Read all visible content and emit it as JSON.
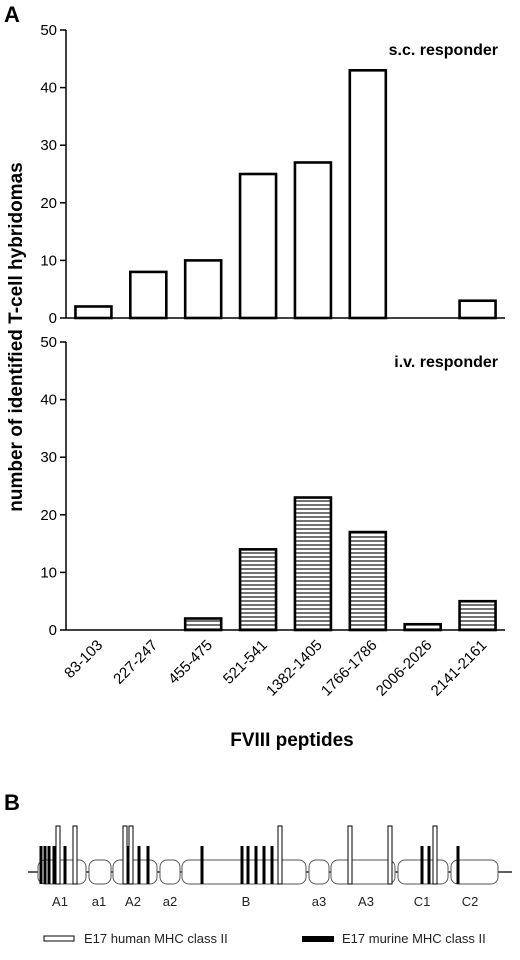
{
  "panel_a_label": "A",
  "panel_b_label": "B",
  "chart_data": [
    {
      "type": "bar",
      "title": "s.c. responder",
      "categories": [
        "83-103",
        "227-247",
        "455-475",
        "521-541",
        "1382-1405",
        "1766-1786",
        "2006-2026",
        "2141-2161"
      ],
      "values": [
        2,
        8,
        10,
        25,
        27,
        43,
        0,
        3
      ],
      "ylabel": "number of identified T-cell hybridomas",
      "ylim": [
        0,
        50
      ],
      "yticks": [
        "0",
        "10",
        "20",
        "30",
        "40",
        "50"
      ],
      "fill": "open",
      "grid": false
    },
    {
      "type": "bar",
      "title": "i.v. responder",
      "categories": [
        "83-103",
        "227-247",
        "455-475",
        "521-541",
        "1382-1405",
        "1766-1786",
        "2006-2026",
        "2141-2161"
      ],
      "values": [
        0,
        0,
        2,
        14,
        23,
        17,
        1,
        5
      ],
      "ylabel": "number of identified T-cell hybridomas",
      "xlabel": "FVIII peptides",
      "ylim": [
        0,
        50
      ],
      "yticks": [
        "0",
        "10",
        "20",
        "30",
        "40",
        "50"
      ],
      "fill": "horizontal-stripes",
      "grid": false
    }
  ],
  "ylabel": "number of identified T-cell hybridomas",
  "xlabel": "FVIII peptides",
  "domain_map": {
    "domains": [
      "A1",
      "a1",
      "A2",
      "a2",
      "B",
      "a3",
      "A3",
      "C1",
      "C2"
    ],
    "legend": [
      {
        "label": "E17 human MHC class II",
        "style": "open"
      },
      {
        "label": "E17 murine MHC class II",
        "style": "filled"
      }
    ]
  },
  "colors": {
    "ink": "#000000",
    "domain_fill": "#ffffff"
  }
}
